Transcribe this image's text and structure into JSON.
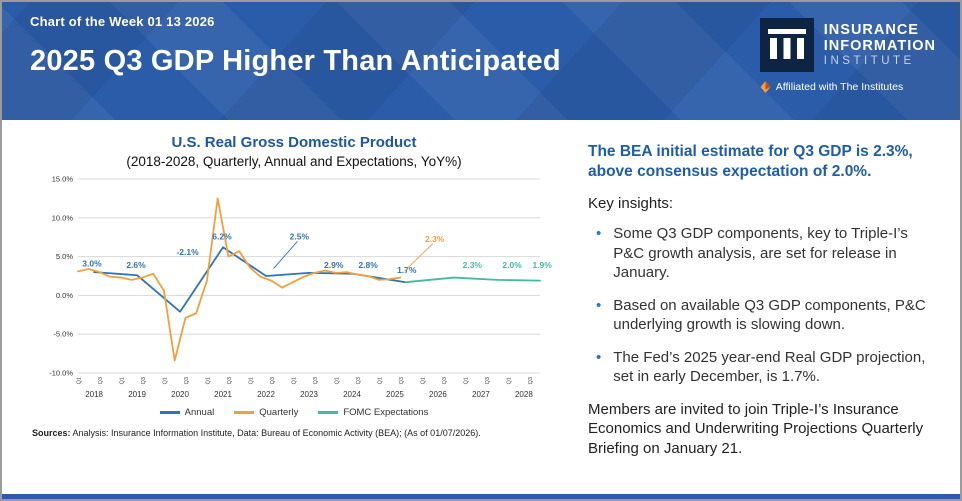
{
  "page": {
    "eyebrow": "Chart of the Week 01 13 2026",
    "title": "2025 Q3 GDP Higher Than Anticipated"
  },
  "logo": {
    "line1": "INSURANCE",
    "line2": "INFORMATION",
    "line3": "INSTITUTE",
    "affiliation": "Affiliated with The Institutes"
  },
  "sources": {
    "label": "Sources:",
    "text": "Analysis: Insurance Information Institute, Data: Bureau of Economic Activity (BEA); (As of 01/07/2026)."
  },
  "chart_data": {
    "type": "line",
    "title": "U.S. Real Gross Domestic Product",
    "subtitle": "(2018-2028, Quarterly, Annual and Expectations, YoY%)",
    "ylim": [
      -10,
      15
    ],
    "yticks": [
      {
        "v": 15,
        "label": "15.0%"
      },
      {
        "v": 10,
        "label": "10.0%"
      },
      {
        "v": 5,
        "label": "5.0%"
      },
      {
        "v": 0,
        "label": "0.0%"
      },
      {
        "v": -5,
        "label": "-5.0%"
      },
      {
        "v": -10,
        "label": "-10.0%"
      }
    ],
    "x_axis": {
      "unit": "quarter-index from 2018Q1 (0) to 2028Q4 (43)",
      "start_year": 2018,
      "end_year": 2028,
      "quarter_tick_labels": [
        "Q1",
        "Q3"
      ]
    },
    "grid": "horizontal",
    "legend": {
      "position": "bottom",
      "entries": [
        "Annual",
        "Quarterly",
        "FOMC Expectations"
      ]
    },
    "series": [
      {
        "name": "Annual",
        "color": "#2e74b5",
        "x": [
          1.5,
          5.5,
          9.5,
          13.5,
          17.5,
          21.5,
          25.5,
          30.5
        ],
        "y": [
          3.0,
          2.6,
          -2.1,
          6.2,
          2.5,
          2.9,
          2.8,
          1.7
        ]
      },
      {
        "name": "Quarterly",
        "color": "#f2a03d",
        "x": [
          0,
          1,
          2,
          3,
          4,
          5,
          6,
          7,
          8,
          9,
          10,
          11,
          12,
          13,
          14,
          15,
          16,
          17,
          18,
          19,
          20,
          21,
          22,
          23,
          24,
          25,
          26,
          27,
          28,
          29,
          30
        ],
        "y": [
          3.1,
          3.4,
          3.0,
          2.4,
          2.3,
          2.0,
          2.3,
          2.8,
          0.6,
          -8.4,
          -2.9,
          -2.3,
          1.9,
          12.5,
          5.0,
          5.7,
          3.6,
          2.4,
          1.9,
          1.0,
          1.7,
          2.4,
          2.9,
          3.2,
          2.9,
          3.0,
          2.7,
          2.5,
          2.0,
          2.1,
          2.3
        ]
      },
      {
        "name": "FOMC Expectations",
        "color": "#41b9a5",
        "x": [
          30.5,
          35,
          39,
          43
        ],
        "y": [
          1.7,
          2.3,
          2.0,
          1.9
        ]
      }
    ],
    "point_labels": [
      {
        "text": "3.0%",
        "color": "#2e74b5",
        "x": 1.3,
        "y": 4.1
      },
      {
        "text": "2.6%",
        "color": "#2e74b5",
        "x": 5.4,
        "y": 3.9
      },
      {
        "text": "-2.1%",
        "color": "#2e74b5",
        "x": 10.2,
        "y": 5.6
      },
      {
        "text": "6.2%",
        "color": "#2e74b5",
        "x": 13.4,
        "y": 7.6
      },
      {
        "text": "2.5%",
        "color": "#2e74b5",
        "x": 20.6,
        "y": 7.6,
        "leader": {
          "x": 18.2,
          "y": 3.2
        }
      },
      {
        "text": "2.9%",
        "color": "#2e74b5",
        "x": 23.8,
        "y": 3.9
      },
      {
        "text": "2.8%",
        "color": "#2e74b5",
        "x": 27.0,
        "y": 3.9
      },
      {
        "text": "1.7%",
        "color": "#2e74b5",
        "x": 30.6,
        "y": 3.3
      },
      {
        "text": "2.3%",
        "color": "#f2a03d",
        "x": 33.2,
        "y": 7.3,
        "leader": {
          "x": 30.4,
          "y": 2.9
        }
      },
      {
        "text": "2.3%",
        "color": "#41b9a5",
        "x": 36.7,
        "y": 3.9
      },
      {
        "text": "2.0%",
        "color": "#41b9a5",
        "x": 40.4,
        "y": 3.9
      },
      {
        "text": "1.9%",
        "color": "#41b9a5",
        "x": 43.2,
        "y": 3.9
      }
    ]
  },
  "panel": {
    "headline": "The BEA initial estimate for Q3 GDP is 2.3%, above consensus expectation of 2.0%.",
    "key_insights_label": "Key insights:",
    "insights": [
      "Some Q3 GDP components, key to Triple-I’s P&C growth analysis, are set for release in January.",
      "Based on available Q3 GDP components, P&C underlying growth is slowing down.",
      "The Fed’s 2025 year-end Real GDP projection, set in early December, is 1.7%."
    ],
    "closing": "Members are invited to join Triple-I’s Insurance Economics and Underwriting Projections Quarterly Briefing on January 21."
  },
  "colors": {
    "header_blue": "#2b5ca9",
    "logo_navy": "#0e2443",
    "accent_blue": "#2e74b5",
    "accent_orange": "#f2a03d",
    "accent_teal": "#41b9a5",
    "headline_blue": "#1e5ea9"
  }
}
